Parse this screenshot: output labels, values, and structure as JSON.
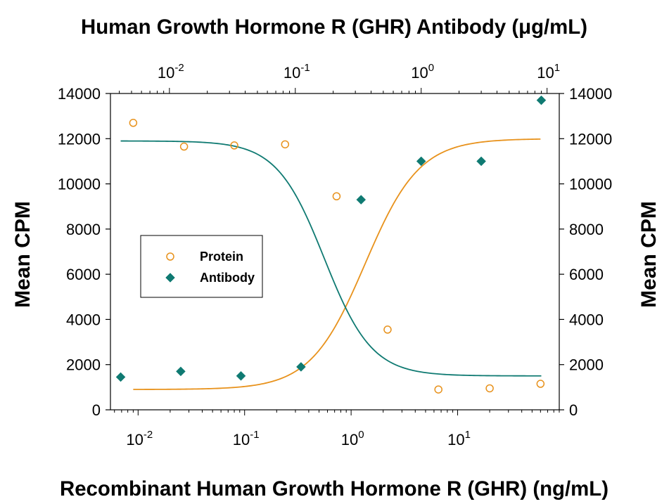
{
  "chart_data": {
    "type": "scatter",
    "title": "Human Growth Hormone R (GHR) Antibody (μg/mL)",
    "xlabel": "Recombinant Human Growth Hormone R (GHR)  (ng/mL)",
    "ylabel": "Mean CPM",
    "ylabel_right": "Mean CPM",
    "x_scale": "log",
    "x_top_scale": "log",
    "x_range": [
      0.0055,
      90
    ],
    "x_top_range": [
      0.0034,
      12.5
    ],
    "ylim": [
      0,
      14000
    ],
    "y_ticks": [
      "0",
      "2000",
      "4000",
      "6000",
      "8000",
      "10000",
      "12000",
      "14000"
    ],
    "y_tick_values": [
      0,
      2000,
      4000,
      6000,
      8000,
      10000,
      12000,
      14000
    ],
    "x_ticks_bottom": [
      {
        "value": 0.01,
        "base": "10",
        "exp": "-2"
      },
      {
        "value": 0.1,
        "base": "10",
        "exp": "-1"
      },
      {
        "value": 1,
        "base": "10",
        "exp": "0"
      },
      {
        "value": 10,
        "base": "10",
        "exp": "1"
      }
    ],
    "x_ticks_top": [
      {
        "value": 0.01,
        "base": "10",
        "exp": "-2"
      },
      {
        "value": 0.1,
        "base": "10",
        "exp": "-1"
      },
      {
        "value": 1,
        "base": "10",
        "exp": "0"
      },
      {
        "value": 10,
        "base": "10",
        "exp": "1"
      }
    ],
    "grid": false,
    "legend_position": "middle-left",
    "series": [
      {
        "name": "Protein",
        "axis": "bottom",
        "marker": "open-circle",
        "color": "#e8921c",
        "x": [
          0.009,
          0.027,
          0.08,
          0.24,
          0.73,
          2.2,
          6.6,
          20,
          60
        ],
        "y": [
          12700,
          11650,
          11700,
          11750,
          9450,
          3550,
          900,
          950,
          1150
        ],
        "fit": {
          "top": 12000,
          "bottom": 900,
          "ec50": 1.35,
          "hill": -1.7,
          "x_from": 0.009,
          "x_to": 60
        }
      },
      {
        "name": "Antibody",
        "axis": "top",
        "marker": "filled-diamond",
        "color": "#0f7a72",
        "x": [
          0.0041,
          0.0123,
          0.037,
          0.111,
          0.333,
          1.0,
          3.0,
          9.0
        ],
        "y": [
          1450,
          1700,
          1500,
          1900,
          9300,
          11000,
          11000,
          13700
        ],
        "fit": {
          "top": 11900,
          "bottom": 1500,
          "ec50": 0.17,
          "hill": 2.3,
          "x_from": 0.0041,
          "x_to": 9.0
        }
      }
    ]
  }
}
